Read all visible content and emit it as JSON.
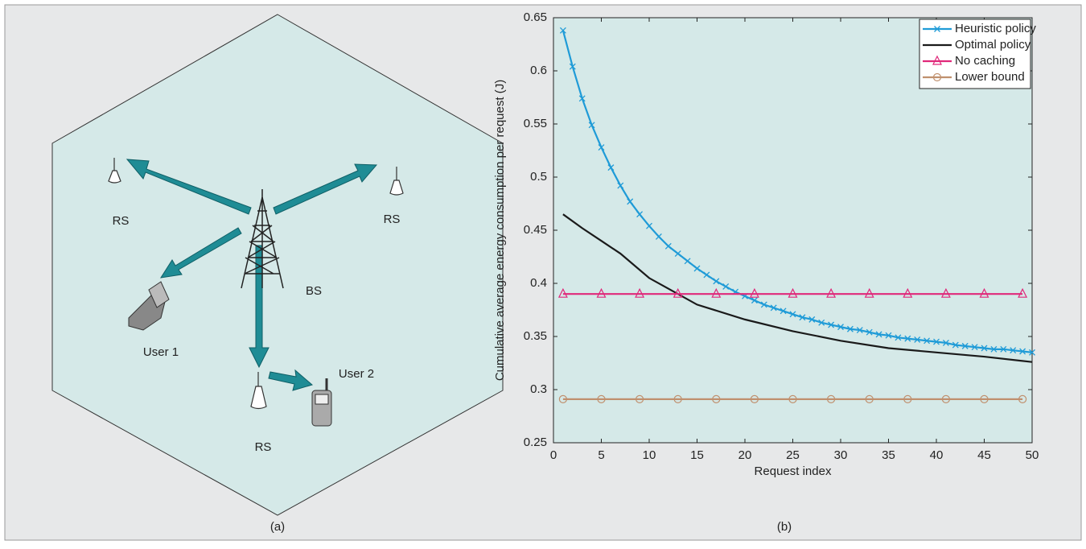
{
  "diagram": {
    "labels": [
      "RS",
      "RS",
      "RS",
      "BS",
      "User 1",
      "User 2"
    ],
    "caption": "(a)"
  },
  "chart_data": {
    "type": "line",
    "caption": "(b)",
    "xlabel": "Request index",
    "ylabel": "Cumulative average energy consumption per request (J)",
    "xlim": [
      0,
      50
    ],
    "xticks": [
      0,
      5,
      10,
      15,
      20,
      25,
      30,
      35,
      40,
      45,
      50
    ],
    "ylim": [
      0.25,
      0.65
    ],
    "yticks": [
      0.25,
      0.3,
      0.35,
      0.4,
      0.45,
      0.5,
      0.55,
      0.6,
      0.65
    ],
    "legend": "upper right",
    "series": [
      {
        "name": "Heuristic policy",
        "color": "#1f9bd7",
        "marker": "x",
        "x": [
          1,
          2,
          3,
          4,
          5,
          6,
          7,
          8,
          9,
          10,
          11,
          12,
          13,
          14,
          15,
          16,
          17,
          18,
          19,
          20,
          21,
          22,
          23,
          24,
          25,
          26,
          27,
          28,
          29,
          30,
          31,
          32,
          33,
          34,
          35,
          36,
          37,
          38,
          39,
          40,
          41,
          42,
          43,
          44,
          45,
          46,
          47,
          48,
          49,
          50
        ],
        "values": [
          0.638,
          0.604,
          0.574,
          0.549,
          0.528,
          0.509,
          0.492,
          0.477,
          0.465,
          0.454,
          0.444,
          0.435,
          0.428,
          0.421,
          0.414,
          0.408,
          0.402,
          0.397,
          0.392,
          0.388,
          0.384,
          0.38,
          0.377,
          0.374,
          0.371,
          0.368,
          0.366,
          0.363,
          0.361,
          0.359,
          0.357,
          0.356,
          0.354,
          0.352,
          0.351,
          0.349,
          0.348,
          0.347,
          0.346,
          0.345,
          0.344,
          0.342,
          0.341,
          0.34,
          0.339,
          0.338,
          0.338,
          0.337,
          0.336,
          0.335
        ]
      },
      {
        "name": "Optimal policy",
        "color": "#1a1a1a",
        "marker": "none",
        "x": [
          1,
          3,
          5,
          7,
          10,
          12,
          15,
          20,
          25,
          30,
          35,
          40,
          45,
          50
        ],
        "values": [
          0.465,
          0.452,
          0.44,
          0.428,
          0.405,
          0.395,
          0.38,
          0.366,
          0.355,
          0.346,
          0.339,
          0.335,
          0.331,
          0.326
        ]
      },
      {
        "name": "No caching",
        "color": "#e0287a",
        "marker": "triangle",
        "x": [
          1,
          5,
          9,
          13,
          17,
          21,
          25,
          29,
          33,
          37,
          41,
          45,
          49
        ],
        "values": [
          0.39,
          0.39,
          0.39,
          0.39,
          0.39,
          0.39,
          0.39,
          0.39,
          0.39,
          0.39,
          0.39,
          0.39,
          0.39
        ]
      },
      {
        "name": "Lower bound",
        "color": "#c0906e",
        "marker": "circle",
        "x": [
          1,
          5,
          9,
          13,
          17,
          21,
          25,
          29,
          33,
          37,
          41,
          45,
          49
        ],
        "values": [
          0.291,
          0.291,
          0.291,
          0.291,
          0.291,
          0.291,
          0.291,
          0.291,
          0.291,
          0.291,
          0.291,
          0.291,
          0.291
        ]
      }
    ]
  }
}
